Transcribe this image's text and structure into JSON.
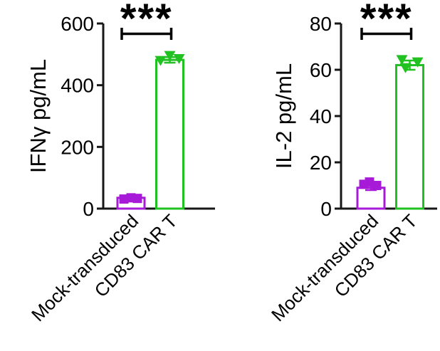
{
  "figure": {
    "background": "#ffffff",
    "axis_color": "#171717",
    "text_color": "#000000",
    "significance_color": "#000000"
  },
  "chart_data": [
    {
      "id": "ifng",
      "type": "bar",
      "title": "",
      "ylabel": "IFNγ pg/mL",
      "xlabel": "",
      "ylim": [
        0,
        600
      ],
      "yticks": [
        0,
        200,
        400,
        600
      ],
      "grid": false,
      "legend": null,
      "categories": [
        "Mock-transduced",
        "CD83 CAR T"
      ],
      "bars": [
        {
          "category": "Mock-transduced",
          "value": 35,
          "color": "#A71AD8",
          "fill": "hollow",
          "marker": "square",
          "points": [
            31,
            35,
            33
          ],
          "point_offsets": [
            -10,
            0,
            9
          ],
          "error": 3
        },
        {
          "category": "CD83 CAR T",
          "value": 482,
          "color": "#21C121",
          "fill": "hollow",
          "marker": "triangle-down",
          "points": [
            481,
            497,
            487
          ],
          "point_offsets": [
            -13,
            0,
            13
          ],
          "error": 9
        }
      ],
      "significance": "***"
    },
    {
      "id": "il2",
      "type": "bar",
      "title": "",
      "ylabel": "IL-2 pg/mL",
      "xlabel": "",
      "ylim": [
        0,
        80
      ],
      "yticks": [
        0,
        20,
        40,
        60,
        80
      ],
      "grid": false,
      "legend": null,
      "categories": [
        "Mock-transduced",
        "CD83 CAR T"
      ],
      "bars": [
        {
          "category": "Mock-transduced",
          "value": 9,
          "color": "#A71AD8",
          "fill": "hollow",
          "marker": "square",
          "points": [
            10.5,
            11.5,
            10
          ],
          "point_offsets": [
            -10,
            -2,
            8
          ],
          "error": 1
        },
        {
          "category": "CD83 CAR T",
          "value": 62,
          "color": "#21C121",
          "fill": "hollow",
          "marker": "triangle-down",
          "points": [
            64.5,
            61,
            63.5
          ],
          "point_offsets": [
            -11,
            -6,
            11
          ],
          "error": 2
        }
      ],
      "significance": "***"
    }
  ]
}
